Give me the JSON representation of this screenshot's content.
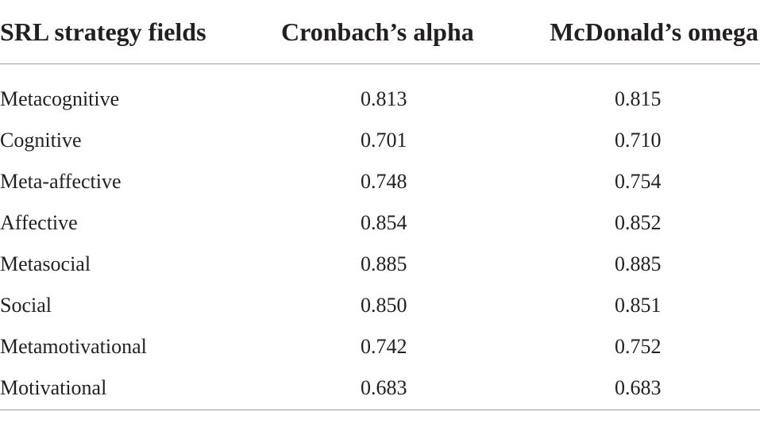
{
  "table": {
    "headers": [
      "SRL strategy fields",
      "Cronbach’s alpha",
      "McDonald’s omega"
    ],
    "rows": [
      {
        "field": "Metacognitive",
        "alpha": "0.813",
        "omega": "0.815"
      },
      {
        "field": "Cognitive",
        "alpha": "0.701",
        "omega": "0.710"
      },
      {
        "field": "Meta-affective",
        "alpha": "0.748",
        "omega": "0.754"
      },
      {
        "field": "Affective",
        "alpha": "0.854",
        "omega": "0.852"
      },
      {
        "field": "Metasocial",
        "alpha": "0.885",
        "omega": "0.885"
      },
      {
        "field": "Social",
        "alpha": "0.850",
        "omega": "0.851"
      },
      {
        "field": "Metamotivational",
        "alpha": "0.742",
        "omega": "0.752"
      },
      {
        "field": "Motivational",
        "alpha": "0.683",
        "omega": "0.683"
      }
    ]
  }
}
